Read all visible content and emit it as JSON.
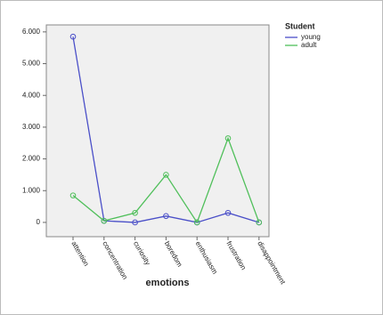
{
  "chart_data": {
    "type": "line",
    "x_label": "emotions",
    "legend_title": "Student",
    "legend_position": "upper right",
    "categories": [
      "attention",
      "concentration",
      "curiosity",
      "boredom",
      "enthusiasm",
      "frustration",
      "disappointment"
    ],
    "series": [
      {
        "name": "young",
        "color": "#4a4fc8",
        "values": [
          5.85,
          0.05,
          0.0,
          0.2,
          0.0,
          0.3,
          0.0
        ]
      },
      {
        "name": "adult",
        "color": "#4fbf5a",
        "values": [
          0.85,
          0.05,
          0.3,
          1.5,
          0.0,
          2.65,
          0.0
        ]
      }
    ],
    "ylim": [
      -0.45,
      6.22
    ],
    "yticks": [
      0,
      {
        "value": 1,
        "label": "1.000"
      },
      {
        "value": 2,
        "label": "2.000"
      },
      {
        "value": 3,
        "label": "3.000"
      },
      {
        "value": 4,
        "label": "4.000"
      },
      {
        "value": 5,
        "label": "5.000"
      },
      {
        "value": 6,
        "label": "6.000"
      }
    ]
  }
}
